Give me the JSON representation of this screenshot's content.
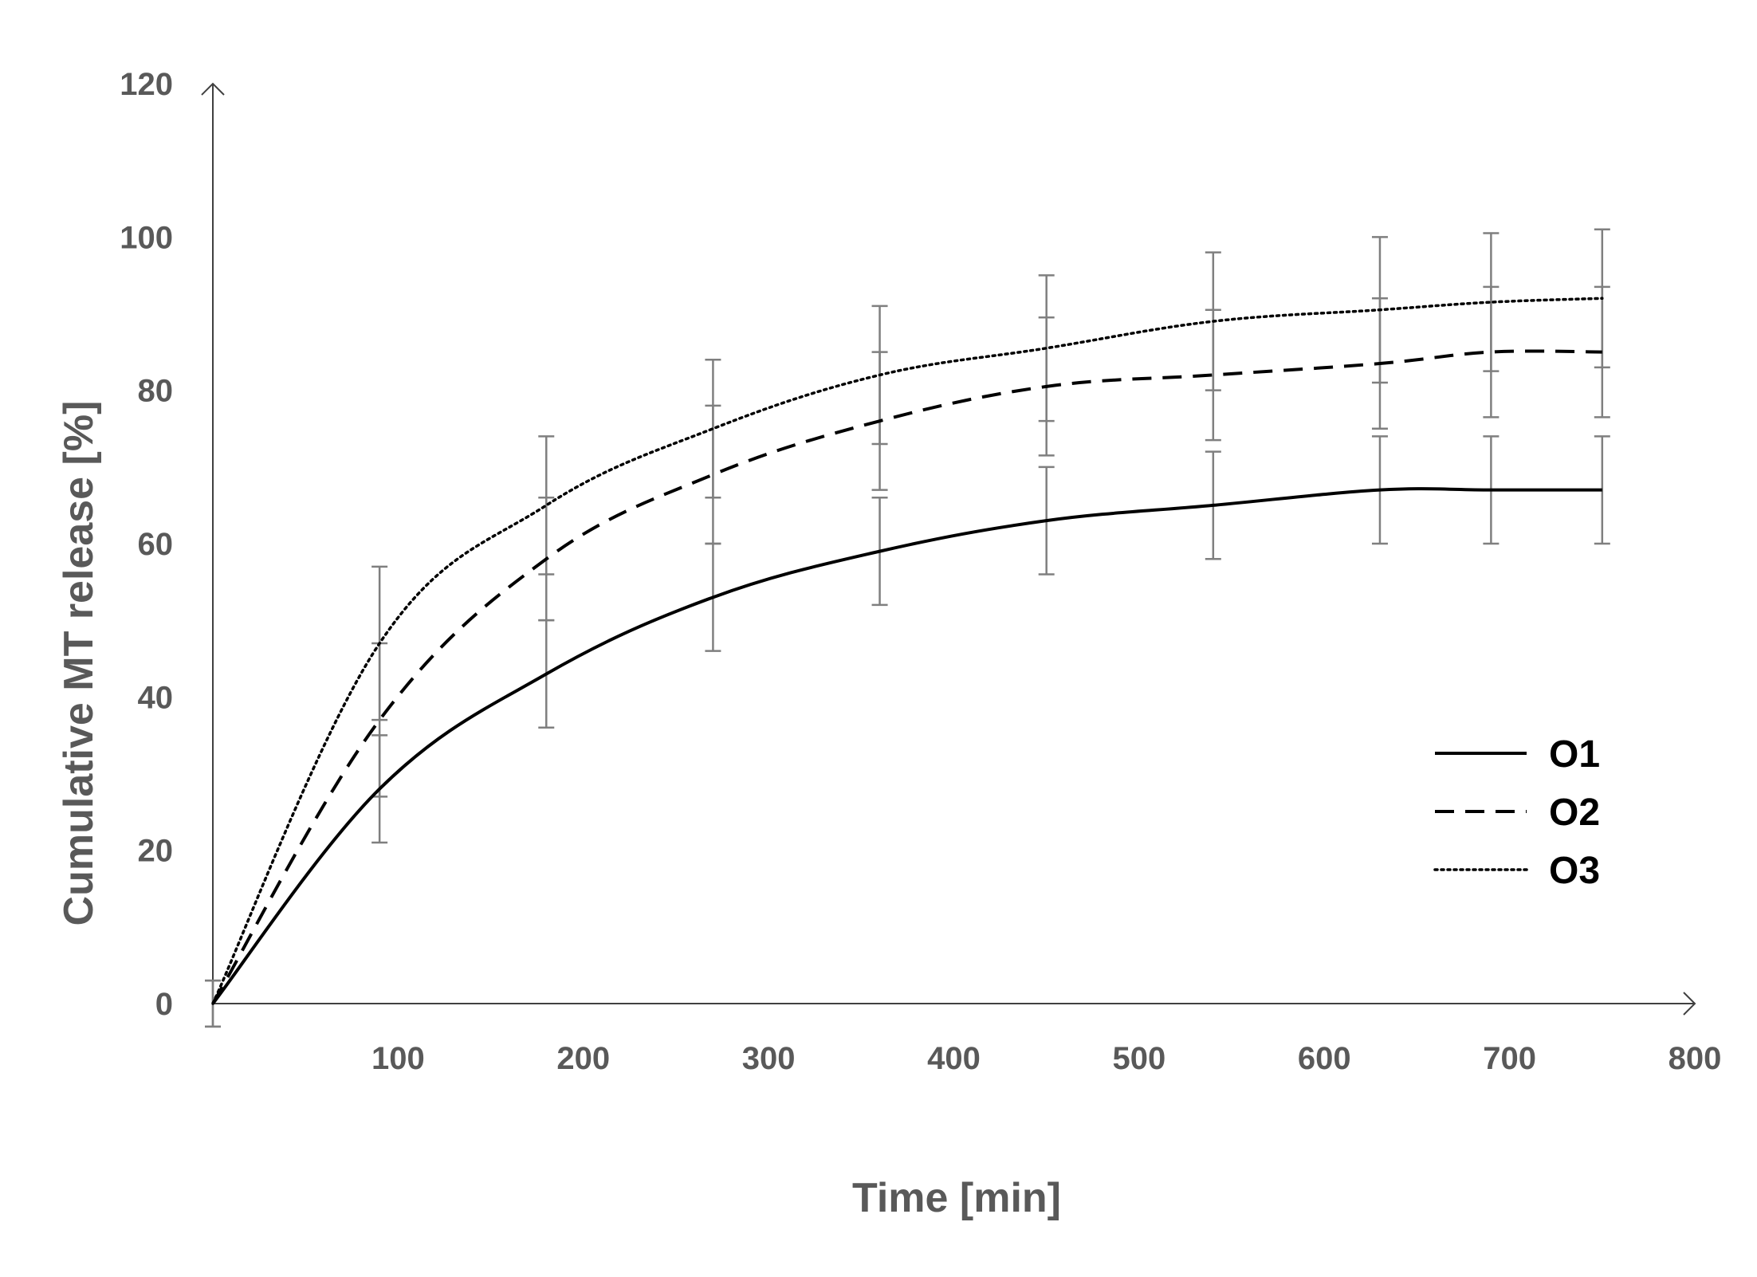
{
  "chart_data": {
    "type": "line",
    "title": "",
    "xlabel": "Time [min]",
    "ylabel": "Cumulative MT release [%]",
    "xlim": [
      0,
      800
    ],
    "ylim": [
      0,
      120
    ],
    "x_ticks": [
      100,
      200,
      300,
      400,
      500,
      600,
      700,
      800
    ],
    "y_ticks": [
      0,
      20,
      40,
      60,
      80,
      100,
      120
    ],
    "grid": false,
    "legend_position": "bottom-right",
    "x": [
      0,
      90,
      180,
      270,
      360,
      450,
      540,
      630,
      690,
      750
    ],
    "series": [
      {
        "name": "O1",
        "style": "solid",
        "color": "#000000",
        "values": [
          0,
          28,
          43,
          53,
          59,
          63,
          65,
          67,
          67,
          67
        ],
        "errors": [
          0,
          7,
          7,
          7,
          7,
          7,
          7,
          7,
          7,
          7
        ]
      },
      {
        "name": "O2",
        "style": "dashed",
        "color": "#000000",
        "values": [
          0,
          37,
          58,
          69,
          76,
          80.5,
          82,
          83.5,
          85,
          85
        ],
        "errors": [
          3,
          10,
          8,
          9,
          9,
          9,
          8.5,
          8.5,
          8.5,
          8.5
        ]
      },
      {
        "name": "O3",
        "style": "dotted",
        "color": "#000000",
        "values": [
          0,
          47,
          65,
          75,
          82,
          85.5,
          89,
          90.5,
          91.5,
          92
        ],
        "errors": [
          3,
          10,
          9,
          9,
          9,
          9.5,
          9,
          9.5,
          9,
          9
        ]
      }
    ]
  }
}
